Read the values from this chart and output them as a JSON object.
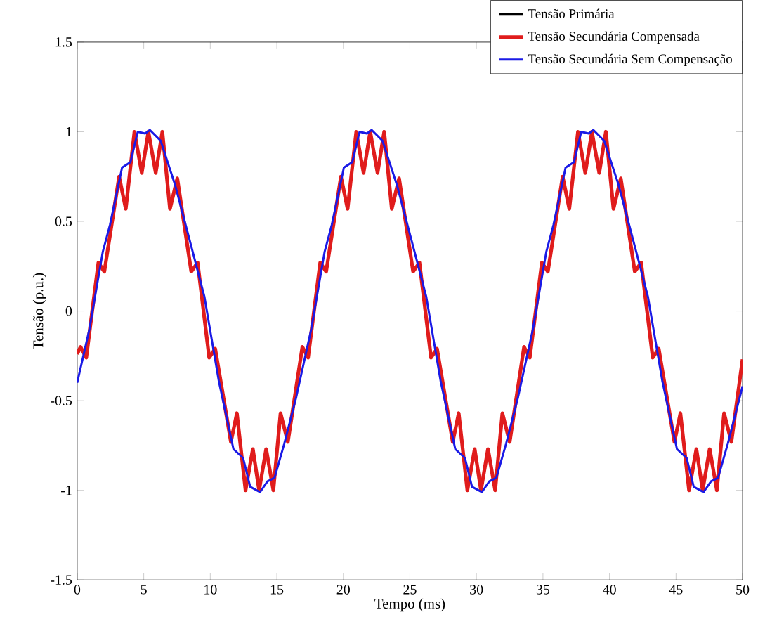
{
  "chart_data": {
    "type": "line",
    "xlabel": "Tempo (ms)",
    "ylabel": "Tensão (p.u.)",
    "xlim": [
      0,
      50
    ],
    "ylim": [
      -1.5,
      1.5
    ],
    "xticks": [
      0,
      5,
      10,
      15,
      20,
      25,
      30,
      35,
      40,
      45,
      50
    ],
    "yticks": [
      -1.5,
      -1,
      -0.5,
      0,
      0.5,
      1,
      1.5
    ],
    "legend": "top right",
    "marker": "none",
    "line_style": "solid",
    "series": [
      {
        "name": "Tensão Primária",
        "color": "#000000"
      },
      {
        "name": "Tensão Secundária Compensada",
        "color": "#e01c1c",
        "x": [
          0,
          0.25,
          0.68,
          1.59,
          2.04,
          3.15,
          3.65,
          4.3,
          4.85,
          5.35,
          5.9,
          6.4,
          6.97,
          7.52,
          8.57,
          9.05,
          9.92,
          10.37,
          11.55,
          12.0,
          12.65,
          13.2,
          13.67,
          14.2,
          14.74,
          15.28,
          15.83,
          16.92,
          17.35,
          18.26,
          18.71,
          19.82,
          20.32,
          20.97,
          21.52,
          22.02,
          22.57,
          23.07,
          23.64,
          24.19,
          25.24,
          25.72,
          26.59,
          27.04,
          28.22,
          28.67,
          29.32,
          29.87,
          30.34,
          30.87,
          31.41,
          31.95,
          32.5,
          33.58,
          34.01,
          34.92,
          35.37,
          36.48,
          36.98,
          37.63,
          38.18,
          38.68,
          39.23,
          39.73,
          40.3,
          40.85,
          41.9,
          42.38,
          43.25,
          43.7,
          44.88,
          45.33,
          45.98,
          46.53,
          47.0,
          47.53,
          48.07,
          48.61,
          49.16,
          50
        ],
        "values": [
          -0.24,
          -0.2,
          -0.26,
          0.27,
          0.22,
          0.75,
          0.57,
          1.0,
          0.77,
          1.0,
          0.77,
          1.0,
          0.57,
          0.74,
          0.22,
          0.27,
          -0.26,
          -0.21,
          -0.73,
          -0.57,
          -1.0,
          -0.77,
          -1.0,
          -0.77,
          -1.0,
          -0.57,
          -0.73,
          -0.2,
          -0.26,
          0.27,
          0.22,
          0.75,
          0.57,
          1.0,
          0.77,
          1.0,
          0.77,
          1.0,
          0.57,
          0.74,
          0.22,
          0.27,
          -0.26,
          -0.21,
          -0.73,
          -0.57,
          -1.0,
          -0.77,
          -1.0,
          -0.77,
          -1.0,
          -0.57,
          -0.73,
          -0.2,
          -0.26,
          0.27,
          0.22,
          0.75,
          0.57,
          1.0,
          0.77,
          1.0,
          0.77,
          1.0,
          0.57,
          0.74,
          0.22,
          0.27,
          -0.26,
          -0.21,
          -0.73,
          -0.57,
          -1.0,
          -0.77,
          -1.0,
          -0.77,
          -1.0,
          -0.57,
          -0.73,
          -0.27
        ]
      },
      {
        "name": "Tensão Secundária Sem Compensação",
        "color": "#1a1ae6",
        "x": [
          0,
          0.92,
          1.92,
          2.46,
          3.37,
          4.0,
          4.55,
          5.1,
          5.46,
          6.27,
          7.37,
          8.47,
          9.56,
          10.64,
          11.74,
          12.47,
          13.0,
          13.74,
          14.3,
          14.83,
          15.56,
          16.46,
          17.59,
          18.59,
          19.13,
          20.04,
          20.67,
          21.22,
          21.77,
          22.13,
          22.94,
          24.04,
          25.14,
          26.23,
          27.31,
          28.41,
          29.14,
          29.67,
          30.41,
          30.97,
          31.5,
          32.23,
          33.13,
          34.25,
          35.25,
          35.79,
          36.7,
          37.33,
          37.88,
          38.43,
          38.79,
          39.6,
          40.7,
          41.8,
          42.89,
          43.97,
          45.07,
          45.8,
          46.33,
          47.07,
          47.63,
          48.16,
          48.89,
          50
        ],
        "values": [
          -0.4,
          -0.1,
          0.33,
          0.48,
          0.8,
          0.83,
          1.0,
          0.99,
          1.01,
          0.95,
          0.7,
          0.39,
          0.08,
          -0.39,
          -0.77,
          -0.82,
          -0.98,
          -1.01,
          -0.95,
          -0.93,
          -0.74,
          -0.48,
          -0.1,
          0.33,
          0.48,
          0.8,
          0.83,
          1.0,
          0.99,
          1.01,
          0.95,
          0.7,
          0.39,
          0.08,
          -0.39,
          -0.77,
          -0.82,
          -0.98,
          -1.01,
          -0.95,
          -0.93,
          -0.74,
          -0.48,
          -0.1,
          0.33,
          0.48,
          0.8,
          0.83,
          1.0,
          0.99,
          1.01,
          0.95,
          0.7,
          0.39,
          0.08,
          -0.39,
          -0.77,
          -0.82,
          -0.98,
          -1.01,
          -0.95,
          -0.93,
          -0.74,
          -0.42
        ]
      }
    ]
  }
}
